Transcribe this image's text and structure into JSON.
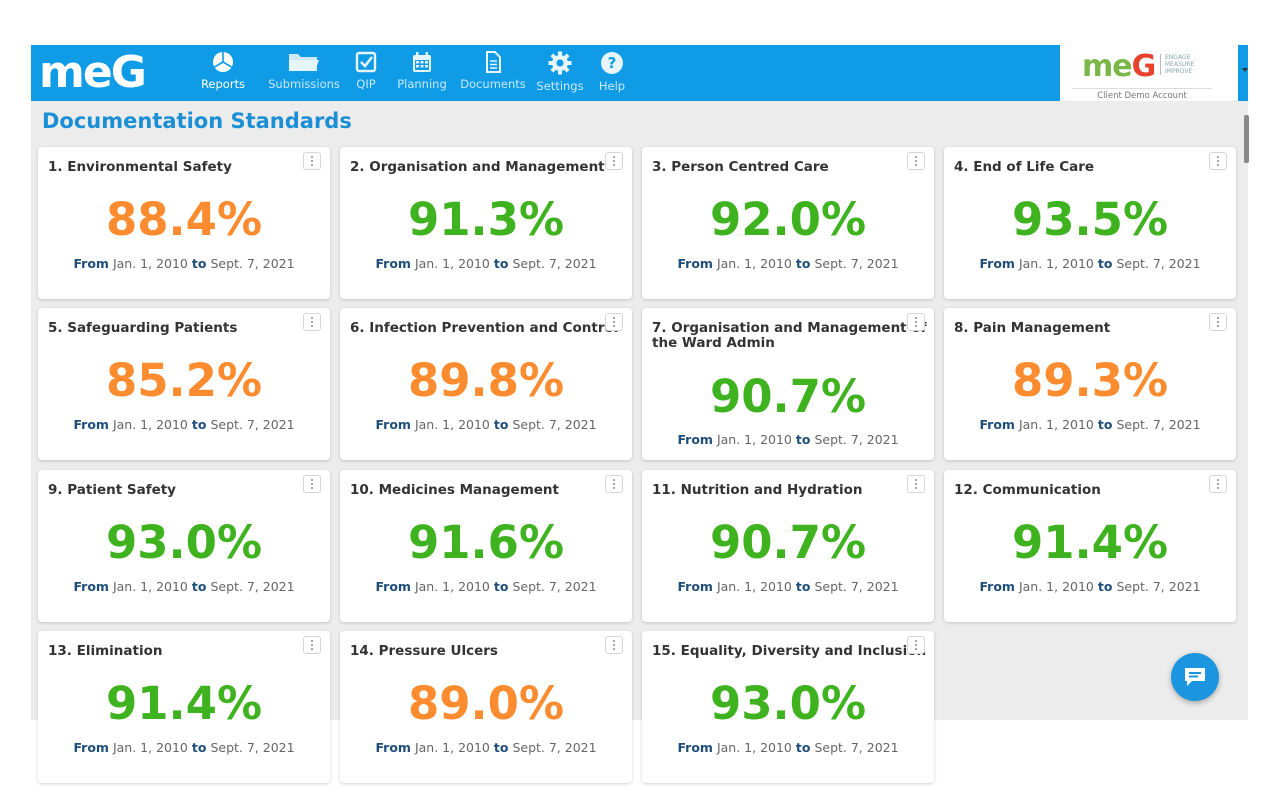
{
  "app": {
    "logo": "meG",
    "client": {
      "logo_left": "me",
      "logo_right": "G",
      "tagline_1": "ENGAGE",
      "tagline_2": "MEASURE",
      "tagline_3": "IMPROVE",
      "account": "Client Demo Account"
    }
  },
  "nav": [
    {
      "label": "Reports",
      "icon": "pie-chart-icon"
    },
    {
      "label": "Submissions",
      "icon": "folder-icon"
    },
    {
      "label": "QIP",
      "icon": "checkbox-icon"
    },
    {
      "label": "Planning",
      "icon": "calendar-icon"
    },
    {
      "label": "Documents",
      "icon": "document-icon"
    },
    {
      "label": "Settings",
      "icon": "gear-icon"
    },
    {
      "label": "Help",
      "icon": "help-icon"
    }
  ],
  "page": {
    "title": "Documentation Standards"
  },
  "range": {
    "from_label": "From",
    "from": "Jan. 1, 2010",
    "to_label": "to",
    "to": "Sept. 7, 2021"
  },
  "cards": [
    {
      "title": "1. Environmental Safety",
      "value": "88.4%",
      "status": "orange"
    },
    {
      "title": "2. Organisation and Management",
      "value": "91.3%",
      "status": "green"
    },
    {
      "title": "3. Person Centred Care",
      "value": "92.0%",
      "status": "green"
    },
    {
      "title": "4. End of Life Care",
      "value": "93.5%",
      "status": "green"
    },
    {
      "title": "5. Safeguarding Patients",
      "value": "85.2%",
      "status": "orange"
    },
    {
      "title": "6. Infection Prevention and Control",
      "value": "89.8%",
      "status": "orange"
    },
    {
      "title": "7. Organisation and Management of the Ward Admin",
      "value": "90.7%",
      "status": "green"
    },
    {
      "title": "8. Pain Management",
      "value": "89.3%",
      "status": "orange"
    },
    {
      "title": "9. Patient Safety",
      "value": "93.0%",
      "status": "green"
    },
    {
      "title": "10. Medicines Management",
      "value": "91.6%",
      "status": "green"
    },
    {
      "title": "11. Nutrition and Hydration",
      "value": "90.7%",
      "status": "green"
    },
    {
      "title": "12. Communication",
      "value": "91.4%",
      "status": "green"
    },
    {
      "title": "13. Elimination",
      "value": "91.4%",
      "status": "green"
    },
    {
      "title": "14. Pressure Ulcers",
      "value": "89.0%",
      "status": "orange"
    },
    {
      "title": "15. Equality, Diversity and Inclusion",
      "value": "93.0%",
      "status": "green"
    }
  ],
  "colors": {
    "header": "#0f9be6",
    "good": "#3fb31f",
    "warn": "#fd8c30",
    "title": "#1b8fd6"
  }
}
